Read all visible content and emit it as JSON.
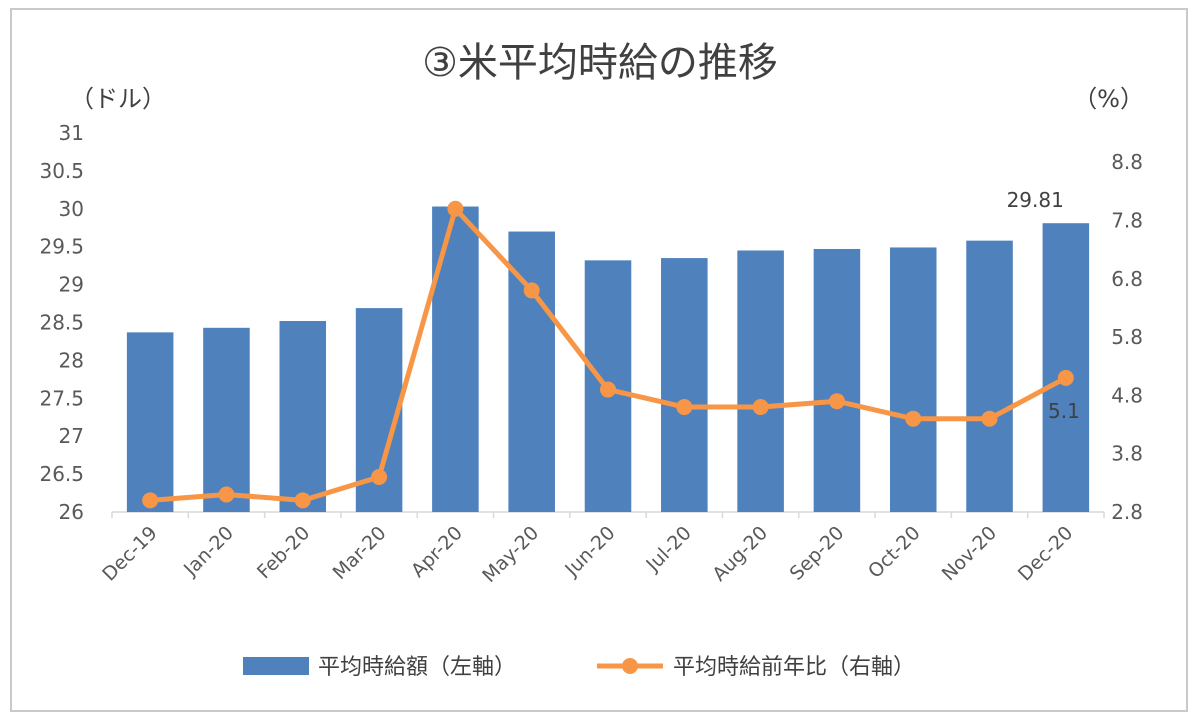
{
  "chart_data": {
    "type": "bar+line",
    "title": "③米平均時給の推移",
    "left_unit": "（ドル）",
    "right_unit": "（%）",
    "categories": [
      "Dec-19",
      "Jan-20",
      "Feb-20",
      "Mar-20",
      "Apr-20",
      "May-20",
      "Jun-20",
      "Jul-20",
      "Aug-20",
      "Sep-20",
      "Oct-20",
      "Nov-20",
      "Dec-20"
    ],
    "series": [
      {
        "name": "平均時給額（左軸）",
        "type": "bar",
        "axis": "left",
        "color": "#4f81bd",
        "values": [
          28.37,
          28.43,
          28.52,
          28.69,
          30.03,
          29.7,
          29.32,
          29.35,
          29.45,
          29.47,
          29.49,
          29.58,
          29.81
        ]
      },
      {
        "name": "平均時給前年比（右軸）",
        "type": "line",
        "axis": "right",
        "color": "#f79646",
        "values": [
          3.0,
          3.1,
          3.0,
          3.4,
          8.0,
          6.6,
          4.9,
          4.6,
          4.6,
          4.7,
          4.4,
          4.4,
          5.1
        ]
      }
    ],
    "left_axis": {
      "min": 26,
      "max": 31,
      "ticks": [
        "26",
        "26.5",
        "27",
        "27.5",
        "28",
        "28.5",
        "29",
        "29.5",
        "30",
        "30.5",
        "31"
      ]
    },
    "right_axis": {
      "min": 2.8,
      "max": 9.3,
      "ticks": [
        "2.8",
        "3.8",
        "4.8",
        "5.8",
        "6.8",
        "7.8",
        "8.8"
      ]
    },
    "data_labels": [
      {
        "series": 0,
        "index": 12,
        "text": "29.81"
      },
      {
        "series": 1,
        "index": 12,
        "text": "5.1"
      }
    ],
    "legend_position": "bottom",
    "grid": false
  }
}
